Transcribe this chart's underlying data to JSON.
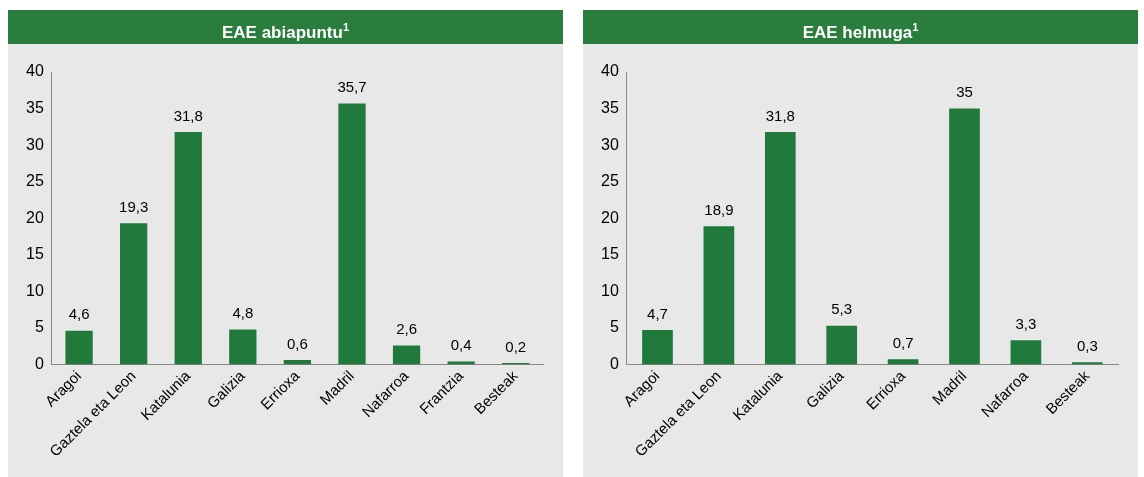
{
  "chart_data": [
    {
      "type": "bar",
      "title": "EAE abiapuntu$^{1}$",
      "categories": [
        "Aragoi",
        "Gaztela eta Leon",
        "Katalunia",
        "Galizia",
        "Errioxa",
        "Madril",
        "Nafarroa",
        "Frantzia",
        "Besteak"
      ],
      "values": [
        4.6,
        19.3,
        31.8,
        4.8,
        0.6,
        35.7,
        2.6,
        0.4,
        0.2
      ],
      "value_labels": [
        "4,6",
        "19,3",
        "31,8",
        "4,8",
        "0,6",
        "35,7",
        "2,6",
        "0,4",
        "0,2"
      ],
      "color": "#217a3c",
      "ylim": [
        0,
        40
      ],
      "yticks": [
        0,
        5,
        10,
        15,
        20,
        25,
        30,
        35,
        40
      ],
      "grid": false,
      "legend": false
    },
    {
      "type": "bar",
      "title": "EAE helmuga$^{1}$",
      "categories": [
        "Aragoi",
        "Gaztela eta Leon",
        "Katalunia",
        "Galizia",
        "Errioxa",
        "Madril",
        "Nafarroa",
        "Besteak"
      ],
      "values": [
        4.7,
        18.9,
        31.8,
        5.3,
        0.7,
        35,
        3.3,
        0.3
      ],
      "value_labels": [
        "4,7",
        "18,9",
        "31,8",
        "5,3",
        "0,7",
        "35",
        "3,3",
        "0,3"
      ],
      "color": "#217a3c",
      "ylim": [
        0,
        40
      ],
      "yticks": [
        0,
        5,
        10,
        15,
        20,
        25,
        30,
        35,
        40
      ],
      "grid": false,
      "legend": false
    }
  ]
}
